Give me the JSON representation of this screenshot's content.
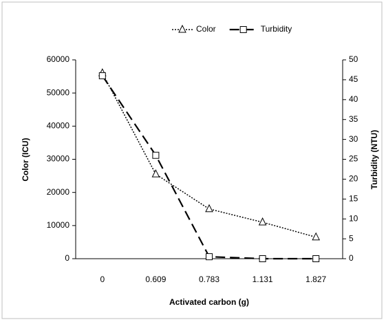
{
  "chart_data": {
    "type": "line",
    "x_label": "Activated carbon (g)",
    "y_label": "Color (ICU)",
    "y2_label": "Turbidity (NTU)",
    "categories": [
      "0",
      "0.609",
      "0.783",
      "1.131",
      "1.827"
    ],
    "series": [
      {
        "name": "Color",
        "color": "#000000",
        "dash": "dotted",
        "marker": "triangle",
        "values": [
          56000,
          25500,
          15000,
          11000,
          6500
        ]
      },
      {
        "name": "Turbidity",
        "color": "#000000",
        "dash": "dashed",
        "marker": "square",
        "axis": "y2",
        "values": [
          46,
          26,
          0.5,
          0,
          0
        ]
      }
    ],
    "ylim": [
      0,
      60000
    ],
    "yticks": [
      0,
      10000,
      20000,
      30000,
      40000,
      50000,
      60000
    ],
    "y2lim": [
      0,
      50
    ],
    "y2ticks": [
      0,
      5,
      10,
      15,
      20,
      25,
      30,
      35,
      40,
      45,
      50
    ],
    "legend": "top",
    "grid": false
  }
}
